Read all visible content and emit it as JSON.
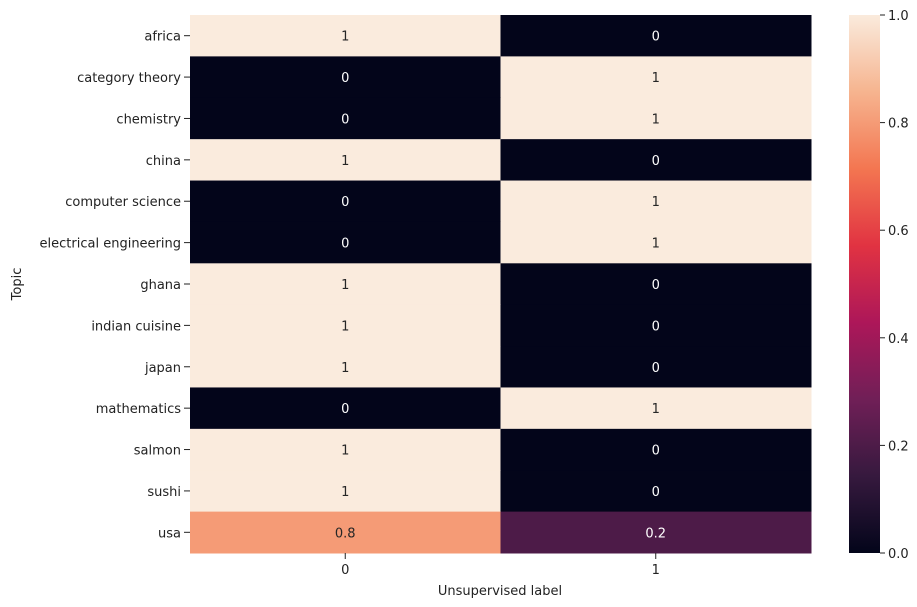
{
  "chart_data": {
    "type": "heatmap",
    "title": "",
    "xlabel": "Unsupervised label",
    "ylabel": "Topic",
    "x_categories": [
      "0",
      "1"
    ],
    "y_categories": [
      "africa",
      "category theory",
      "chemistry",
      "china",
      "computer science",
      "electrical engineering",
      "ghana",
      "indian cuisine",
      "japan",
      "mathematics",
      "salmon",
      "sushi",
      "usa"
    ],
    "values": [
      [
        1,
        0
      ],
      [
        0,
        1
      ],
      [
        0,
        1
      ],
      [
        1,
        0
      ],
      [
        0,
        1
      ],
      [
        0,
        1
      ],
      [
        1,
        0
      ],
      [
        1,
        0
      ],
      [
        1,
        0
      ],
      [
        0,
        1
      ],
      [
        1,
        0
      ],
      [
        1,
        0
      ],
      [
        0.8,
        0.2
      ]
    ],
    "cell_labels": [
      [
        "1",
        "0"
      ],
      [
        "0",
        "1"
      ],
      [
        "0",
        "1"
      ],
      [
        "1",
        "0"
      ],
      [
        "0",
        "1"
      ],
      [
        "0",
        "1"
      ],
      [
        "1",
        "0"
      ],
      [
        "1",
        "0"
      ],
      [
        "1",
        "0"
      ],
      [
        "0",
        "1"
      ],
      [
        "1",
        "0"
      ],
      [
        "1",
        "0"
      ],
      [
        "0.8",
        "0.2"
      ]
    ],
    "colorbar": {
      "range": [
        0,
        1
      ],
      "ticks": [
        0,
        0.2,
        0.4,
        0.6,
        0.8,
        1
      ],
      "tick_labels": [
        "0.0",
        "0.2",
        "0.4",
        "0.6",
        "0.8",
        "1.0"
      ]
    },
    "colormap": [
      "#03051a",
      "#36193e",
      "#701f57",
      "#ad1759",
      "#e13342",
      "#f37651",
      "#f6b48f",
      "#faebdd"
    ],
    "grid": false,
    "legend": "none"
  }
}
